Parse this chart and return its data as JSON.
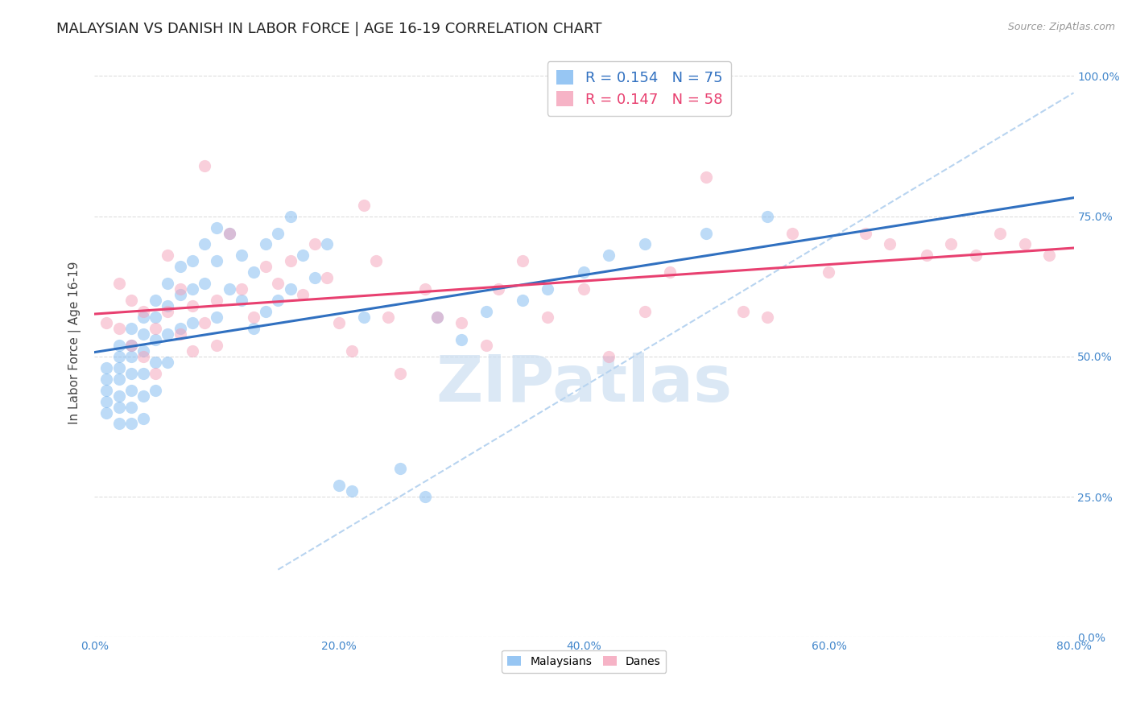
{
  "title": "MALAYSIAN VS DANISH IN LABOR FORCE | AGE 16-19 CORRELATION CHART",
  "source": "Source: ZipAtlas.com",
  "ylabel": "In Labor Force | Age 16-19",
  "xlim": [
    0.0,
    0.8
  ],
  "ylim": [
    0.0,
    1.05
  ],
  "yticks": [
    0.0,
    0.25,
    0.5,
    0.75,
    1.0
  ],
  "ytick_labels": [
    "0.0%",
    "25.0%",
    "50.0%",
    "75.0%",
    "100.0%"
  ],
  "xticks": [
    0.0,
    0.2,
    0.4,
    0.6,
    0.8
  ],
  "xtick_labels": [
    "0.0%",
    "20.0%",
    "40.0%",
    "60.0%",
    "80.0%"
  ],
  "malaysian_color": "#7db8f0",
  "danish_color": "#f4a0b8",
  "malaysian_line_color": "#3070c0",
  "danish_line_color": "#e84070",
  "ref_line_color": "#b8d4f0",
  "R_malaysian": 0.154,
  "N_malaysian": 75,
  "R_danish": 0.147,
  "N_danish": 58,
  "legend_labels": [
    "Malaysians",
    "Danes"
  ],
  "watermark": "ZIPatlas",
  "malaysian_x": [
    0.01,
    0.01,
    0.01,
    0.01,
    0.01,
    0.02,
    0.02,
    0.02,
    0.02,
    0.02,
    0.02,
    0.02,
    0.03,
    0.03,
    0.03,
    0.03,
    0.03,
    0.03,
    0.03,
    0.04,
    0.04,
    0.04,
    0.04,
    0.04,
    0.04,
    0.05,
    0.05,
    0.05,
    0.05,
    0.05,
    0.06,
    0.06,
    0.06,
    0.06,
    0.07,
    0.07,
    0.07,
    0.08,
    0.08,
    0.08,
    0.09,
    0.09,
    0.1,
    0.1,
    0.1,
    0.11,
    0.11,
    0.12,
    0.12,
    0.13,
    0.13,
    0.14,
    0.14,
    0.15,
    0.15,
    0.16,
    0.16,
    0.17,
    0.18,
    0.19,
    0.2,
    0.21,
    0.22,
    0.25,
    0.27,
    0.28,
    0.3,
    0.32,
    0.35,
    0.37,
    0.4,
    0.42,
    0.45,
    0.5,
    0.55
  ],
  "malaysian_y": [
    0.48,
    0.46,
    0.44,
    0.42,
    0.4,
    0.52,
    0.5,
    0.48,
    0.46,
    0.43,
    0.41,
    0.38,
    0.55,
    0.52,
    0.5,
    0.47,
    0.44,
    0.41,
    0.38,
    0.57,
    0.54,
    0.51,
    0.47,
    0.43,
    0.39,
    0.6,
    0.57,
    0.53,
    0.49,
    0.44,
    0.63,
    0.59,
    0.54,
    0.49,
    0.66,
    0.61,
    0.55,
    0.67,
    0.62,
    0.56,
    0.7,
    0.63,
    0.73,
    0.67,
    0.57,
    0.72,
    0.62,
    0.68,
    0.6,
    0.65,
    0.55,
    0.7,
    0.58,
    0.72,
    0.6,
    0.75,
    0.62,
    0.68,
    0.64,
    0.7,
    0.27,
    0.26,
    0.57,
    0.3,
    0.25,
    0.57,
    0.53,
    0.58,
    0.6,
    0.62,
    0.65,
    0.68,
    0.7,
    0.72,
    0.75
  ],
  "danish_x": [
    0.01,
    0.02,
    0.02,
    0.03,
    0.03,
    0.04,
    0.04,
    0.05,
    0.05,
    0.06,
    0.06,
    0.07,
    0.07,
    0.08,
    0.08,
    0.09,
    0.09,
    0.1,
    0.1,
    0.11,
    0.12,
    0.13,
    0.14,
    0.15,
    0.16,
    0.17,
    0.18,
    0.19,
    0.2,
    0.21,
    0.22,
    0.23,
    0.24,
    0.25,
    0.27,
    0.28,
    0.3,
    0.32,
    0.33,
    0.35,
    0.37,
    0.4,
    0.42,
    0.45,
    0.47,
    0.5,
    0.53,
    0.55,
    0.57,
    0.6,
    0.63,
    0.65,
    0.68,
    0.7,
    0.72,
    0.74,
    0.76,
    0.78
  ],
  "danish_y": [
    0.56,
    0.63,
    0.55,
    0.6,
    0.52,
    0.58,
    0.5,
    0.55,
    0.47,
    0.68,
    0.58,
    0.62,
    0.54,
    0.59,
    0.51,
    0.56,
    0.84,
    0.6,
    0.52,
    0.72,
    0.62,
    0.57,
    0.66,
    0.63,
    0.67,
    0.61,
    0.7,
    0.64,
    0.56,
    0.51,
    0.77,
    0.67,
    0.57,
    0.47,
    0.62,
    0.57,
    0.56,
    0.52,
    0.62,
    0.67,
    0.57,
    0.62,
    0.5,
    0.58,
    0.65,
    0.82,
    0.58,
    0.57,
    0.72,
    0.65,
    0.72,
    0.7,
    0.68,
    0.7,
    0.68,
    0.72,
    0.7,
    0.68
  ],
  "background_color": "#ffffff",
  "grid_color": "#dddddd",
  "title_fontsize": 13,
  "axis_label_fontsize": 11,
  "tick_fontsize": 10,
  "legend_fontsize": 13,
  "marker_size": 120,
  "marker_alpha": 0.5,
  "line_width": 2.2
}
